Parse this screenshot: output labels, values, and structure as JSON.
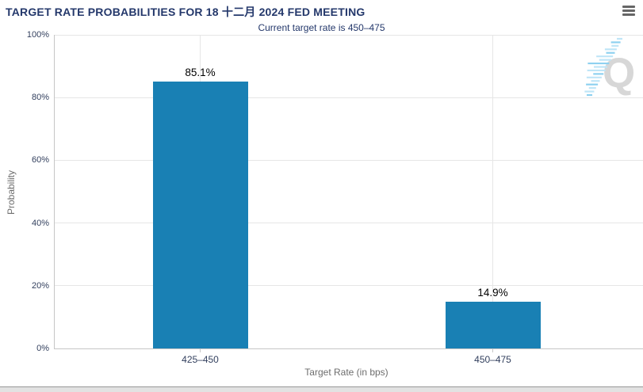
{
  "header": {
    "title": "TARGET RATE PROBABILITIES FOR 18 十二月 2024 FED MEETING",
    "subtitle": "Current target rate is 450–475"
  },
  "logo": {
    "letter": "Q"
  },
  "colors": {
    "bar": "#1980b4",
    "title_text": "#24386b",
    "axis_tick_label": "#33405e",
    "axis_title": "#6d6d6d",
    "gridline": "#e6e6e6",
    "axis_line": "#c6c6c6",
    "logo_q": "#d7d7d7",
    "logo_dash_light": "#bfe5f7",
    "logo_dash_mid": "#8ed1f0",
    "menu_icon": "#666666"
  },
  "chart_data": {
    "type": "bar",
    "title": "TARGET RATE PROBABILITIES FOR 18 十二月 2024 FED MEETING",
    "subtitle": "Current target rate is 450–475",
    "categories": [
      "425–450",
      "450–475"
    ],
    "values": [
      85.1,
      14.9
    ],
    "data_labels": [
      "85.1%",
      "14.9%"
    ],
    "xlabel": "Target Rate (in bps)",
    "ylabel": "Probability",
    "ylim": [
      0,
      100
    ],
    "yticks": [
      0,
      20,
      40,
      60,
      80,
      100
    ],
    "ytick_labels": [
      "0%",
      "20%",
      "40%",
      "60%",
      "80%",
      "100%"
    ],
    "grid": true,
    "legend": "none"
  }
}
